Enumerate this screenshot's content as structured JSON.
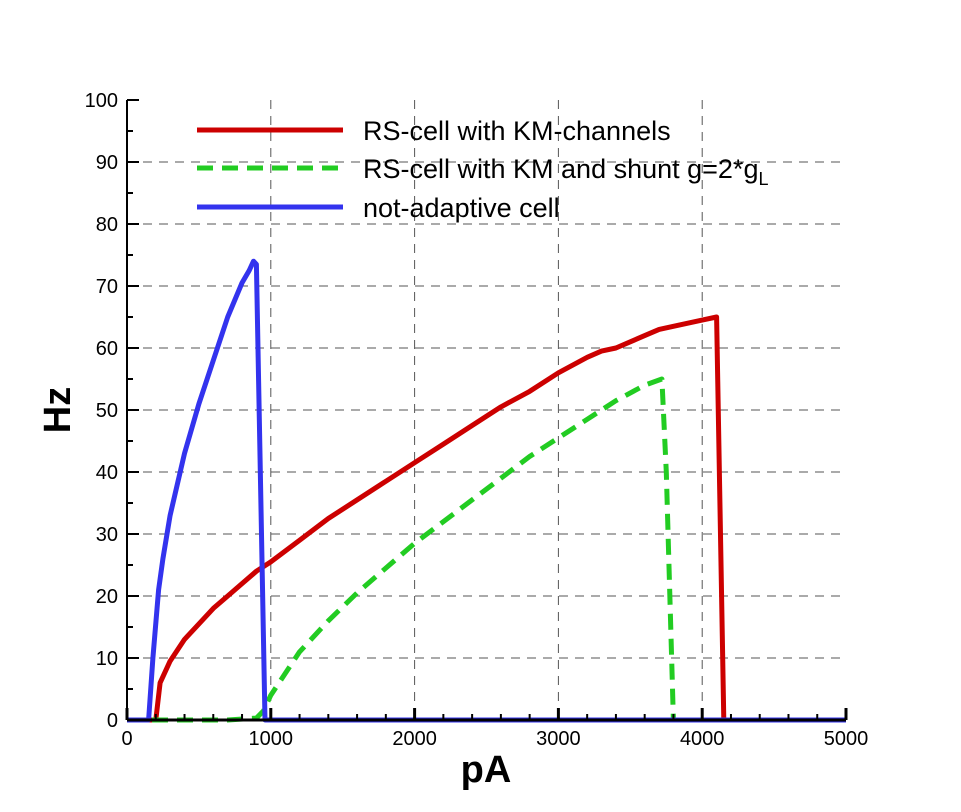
{
  "chart_data": {
    "type": "line",
    "title": "",
    "xlabel": "pA",
    "ylabel": "Hz",
    "xlim": [
      0,
      5000
    ],
    "ylim": [
      0,
      100
    ],
    "xticks": [
      0,
      1000,
      2000,
      3000,
      4000,
      5000
    ],
    "yticks": [
      0,
      10,
      20,
      30,
      40,
      50,
      60,
      70,
      80,
      90,
      100
    ],
    "grid": true,
    "legend_position": "top",
    "series": [
      {
        "name": "RS-cell with KM-channels",
        "legend_main": "RS-cell with KM-channels",
        "legend_sub": "",
        "color": "#cc0000",
        "dash": "solid",
        "x": [
          0,
          200,
          230,
          300,
          400,
          500,
          600,
          700,
          800,
          900,
          1000,
          1200,
          1400,
          1600,
          1800,
          2000,
          2200,
          2400,
          2600,
          2800,
          3000,
          3200,
          3300,
          3400,
          3500,
          3600,
          3700,
          3800,
          3900,
          4000,
          4100,
          4150,
          4200,
          5000
        ],
        "y": [
          0,
          0,
          6,
          9.5,
          13,
          15.5,
          18,
          20,
          22,
          24,
          25.5,
          29,
          32.5,
          35.5,
          38.5,
          41.5,
          44.5,
          47.5,
          50.5,
          53,
          56,
          58.5,
          59.5,
          60,
          61,
          62,
          63,
          63.5,
          64,
          64.5,
          65,
          0,
          0,
          0
        ]
      },
      {
        "name": "RS-cell with KM and shunt g=2*gL",
        "legend_main": "RS-cell with KM and shunt g=2*g",
        "legend_sub": "L",
        "color": "#22cc22",
        "dash": "dashed",
        "x": [
          0,
          200,
          300,
          500,
          700,
          900,
          950,
          1000,
          1100,
          1200,
          1400,
          1600,
          1800,
          2000,
          2200,
          2400,
          2600,
          2800,
          3000,
          3200,
          3400,
          3600,
          3720,
          3750,
          3800,
          5000
        ],
        "y": [
          0,
          0,
          0,
          0,
          0,
          0.3,
          1.5,
          4,
          7.5,
          11,
          16,
          20.5,
          24.5,
          28.5,
          32,
          35.5,
          39,
          42.5,
          45.5,
          48.5,
          51.5,
          54,
          55,
          40,
          0,
          0
        ]
      },
      {
        "name": "not-adaptive cell",
        "legend_main": "not-adaptive cell",
        "legend_sub": "",
        "color": "#3333ee",
        "dash": "solid",
        "x": [
          0,
          150,
          180,
          220,
          250,
          300,
          400,
          500,
          600,
          700,
          800,
          850,
          880,
          900,
          960,
          1000,
          5000
        ],
        "y": [
          0,
          0,
          10,
          21,
          26,
          33,
          43,
          51,
          58,
          65,
          70.5,
          72.5,
          74,
          73.5,
          0,
          0,
          0
        ]
      }
    ]
  }
}
